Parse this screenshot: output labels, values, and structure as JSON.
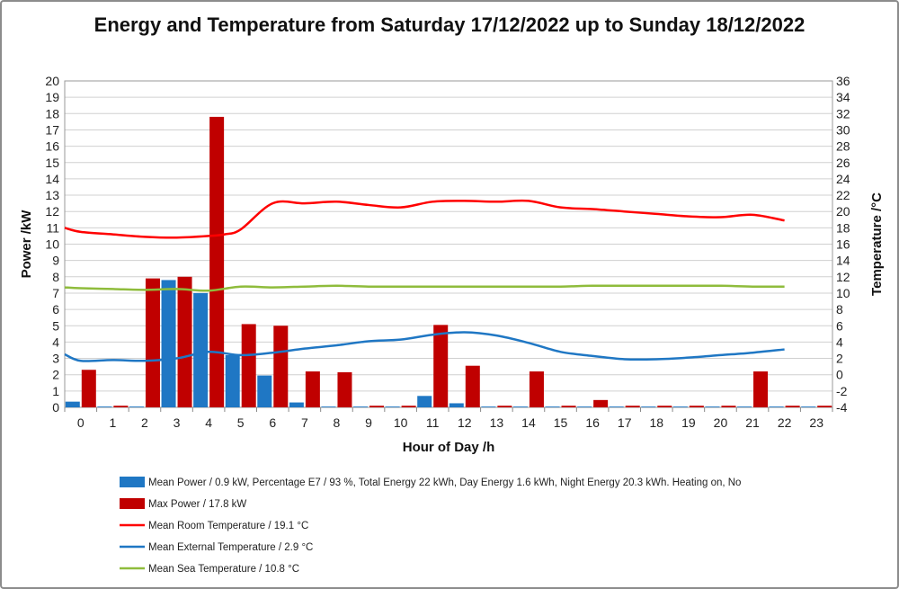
{
  "chart_data": {
    "type": "bar",
    "title": "Energy and Temperature from Saturday 17/12/2022 up to Sunday 18/12/2022",
    "xlabel": "Hour of Day /h",
    "ylabel": "Power /kW",
    "y2label": "Temperature /°C",
    "ylim": [
      0,
      20
    ],
    "y2lim": [
      -4,
      36
    ],
    "categories": [
      "0",
      "1",
      "2",
      "3",
      "4",
      "5",
      "6",
      "7",
      "8",
      "9",
      "10",
      "11",
      "12",
      "13",
      "14",
      "15",
      "16",
      "17",
      "18",
      "19",
      "20",
      "21",
      "22",
      "23"
    ],
    "grid": true,
    "bar_series": [
      {
        "name": "Mean Power / 0.9 kW, Percentage E7 / 93 %, Total Energy 22 kWh, Day Energy 1.6 kWh, Night Energy 20.3 kWh. Heating on, No",
        "color": "#1f77c4",
        "values": [
          0.35,
          0.05,
          0.05,
          7.8,
          7.0,
          3.2,
          1.95,
          0.3,
          0.05,
          0.05,
          0.05,
          0.7,
          0.25,
          0.05,
          0.05,
          0.05,
          0.05,
          0.05,
          0.05,
          0.05,
          0.05,
          0.05,
          0.05,
          0.05
        ]
      },
      {
        "name": "Max Power / 17.8 kW",
        "color": "#c00000",
        "values": [
          2.3,
          0.1,
          7.9,
          8.0,
          17.8,
          5.1,
          5.0,
          2.2,
          2.15,
          0.1,
          0.1,
          5.05,
          2.55,
          0.1,
          2.2,
          0.1,
          0.45,
          0.1,
          0.1,
          0.1,
          0.1,
          2.2,
          0.1,
          0.1
        ]
      }
    ],
    "line_series": [
      {
        "name": "Mean Room Temperature / 19.1 °C",
        "color": "#ff0000",
        "axis": "right",
        "x": [
          -0.5,
          0,
          1,
          2,
          3,
          4,
          4.5,
          5,
          6,
          7,
          8,
          9,
          10,
          11,
          12,
          13,
          14,
          15,
          16,
          17,
          18,
          19,
          20,
          21,
          22
        ],
        "values": [
          18.0,
          17.5,
          17.2,
          16.9,
          16.8,
          17.0,
          17.2,
          17.8,
          21.0,
          21.0,
          21.2,
          20.8,
          20.5,
          21.2,
          21.3,
          21.2,
          21.3,
          20.5,
          20.3,
          20.0,
          19.7,
          19.4,
          19.3,
          19.6,
          18.9
        ]
      },
      {
        "name": "Mean External Temperature / 2.9 °C",
        "color": "#1f77c4",
        "axis": "right",
        "x": [
          -0.5,
          0,
          1,
          2,
          3,
          4,
          5,
          6,
          7,
          8,
          9,
          10,
          11,
          12,
          13,
          14,
          15,
          16,
          17,
          18,
          19,
          20,
          21,
          22
        ],
        "values": [
          2.5,
          1.7,
          1.8,
          1.7,
          2.0,
          2.8,
          2.4,
          2.7,
          3.2,
          3.6,
          4.1,
          4.3,
          4.9,
          5.2,
          4.8,
          3.9,
          2.8,
          2.3,
          1.9,
          1.9,
          2.1,
          2.4,
          2.7,
          3.1
        ]
      },
      {
        "name": "Mean Sea Temperature / 10.8 °C",
        "color": "#8fbc3c",
        "axis": "right",
        "x": [
          -0.5,
          0,
          1,
          2,
          3,
          4,
          5,
          6,
          7,
          8,
          9,
          10,
          11,
          12,
          13,
          14,
          15,
          16,
          17,
          18,
          19,
          20,
          21,
          22
        ],
        "values": [
          10.7,
          10.6,
          10.5,
          10.4,
          10.5,
          10.3,
          10.8,
          10.7,
          10.8,
          10.9,
          10.8,
          10.8,
          10.8,
          10.8,
          10.8,
          10.8,
          10.8,
          10.9,
          10.9,
          10.9,
          10.9,
          10.9,
          10.8,
          10.8
        ]
      }
    ]
  }
}
